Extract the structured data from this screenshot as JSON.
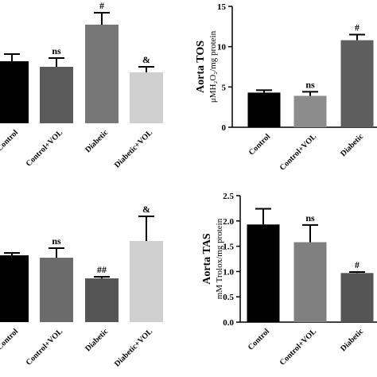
{
  "chart_data": [
    {
      "type": "bar",
      "categories": [
        "Control",
        "Control+VOL",
        "Diabetic",
        "Diabetic+VOL"
      ],
      "values": [
        78,
        71,
        124,
        64
      ],
      "errors": [
        9,
        11,
        15,
        7
      ],
      "annotations": [
        null,
        "ns",
        "#",
        "&"
      ],
      "colors": [
        "#000000",
        "#5a5a5a",
        "#777777",
        "#cfcfcf"
      ],
      "ylim": [
        0,
        140
      ]
    },
    {
      "type": "bar",
      "title": "Aorta TOS",
      "ylabel": "μMH₂O₂/mg protein",
      "categories": [
        "Control",
        "Control+VOL",
        "Diabetic"
      ],
      "values": [
        4.3,
        3.9,
        10.8
      ],
      "errors": [
        0.3,
        0.5,
        0.7
      ],
      "annotations": [
        null,
        "ns",
        "#"
      ],
      "colors": [
        "#000000",
        "#8c8c8c",
        "#5e5e5e"
      ],
      "ylim": [
        0,
        15
      ],
      "yticks": [
        0,
        5,
        10,
        15
      ]
    },
    {
      "type": "bar",
      "categories": [
        "Control",
        "Control+VOL",
        "Diabetic",
        "Diabetic+VOL"
      ],
      "values": [
        84,
        81,
        55,
        102
      ],
      "errors": [
        3,
        12,
        2,
        31
      ],
      "annotations": [
        null,
        "ns",
        "##",
        "&"
      ],
      "colors": [
        "#000000",
        "#6b6b6b",
        "#555555",
        "#cfcfcf"
      ],
      "ylim": [
        0,
        150
      ]
    },
    {
      "type": "bar",
      "title": "Aorta TAS",
      "ylabel": "mM Trolox/mg protein",
      "categories": [
        "Control",
        "Control+VOL",
        "Diabetic"
      ],
      "values": [
        1.93,
        1.58,
        0.97
      ],
      "errors": [
        0.31,
        0.34,
        0.02
      ],
      "annotations": [
        null,
        "ns",
        "#"
      ],
      "colors": [
        "#000000",
        "#808080",
        "#555555"
      ],
      "ylim": [
        0,
        2.5
      ],
      "yticks": [
        {
          "value": 0,
          "label": "0.0"
        },
        0.5,
        {
          "value": 1,
          "label": "1.0"
        },
        1.5,
        {
          "value": 2,
          "label": "2.0"
        },
        2.5
      ]
    }
  ]
}
